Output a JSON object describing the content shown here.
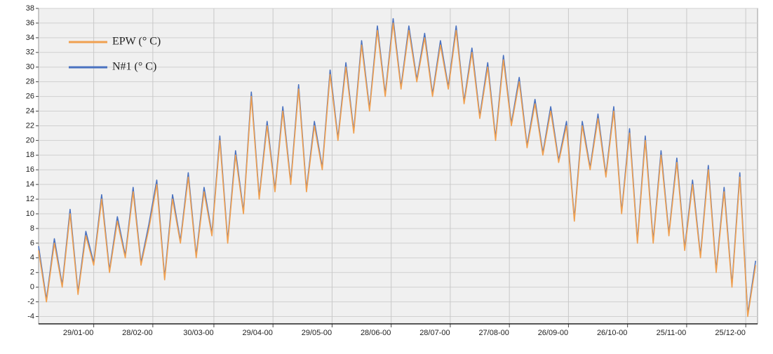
{
  "chart_data": {
    "type": "line",
    "x": [
      "01/01-00",
      "05/01-00",
      "09/01-00",
      "13/01-00",
      "17/01-00",
      "21/01-00",
      "25/01-00",
      "29/01-00",
      "02/02-00",
      "06/02-00",
      "10/02-00",
      "14/02-00",
      "18/02-00",
      "22/02-00",
      "26/02-00",
      "01/03-00",
      "05/03-00",
      "09/03-00",
      "13/03-00",
      "17/03-00",
      "21/03-00",
      "25/03-00",
      "29/03-00",
      "02/04-00",
      "06/04-00",
      "10/04-00",
      "14/04-00",
      "18/04-00",
      "22/04-00",
      "26/04-00",
      "30/04-00",
      "04/05-00",
      "08/05-00",
      "12/05-00",
      "16/05-00",
      "20/05-00",
      "24/05-00",
      "28/05-00",
      "01/06-00",
      "05/06-00",
      "09/06-00",
      "13/06-00",
      "17/06-00",
      "21/06-00",
      "25/06-00",
      "29/06-00",
      "03/07-00",
      "07/07-00",
      "11/07-00",
      "15/07-00",
      "19/07-00",
      "23/07-00",
      "27/07-00",
      "31/07-00",
      "04/08-00",
      "08/08-00",
      "12/08-00",
      "16/08-00",
      "20/08-00",
      "24/08-00",
      "28/08-00",
      "01/09-00",
      "05/09-00",
      "09/09-00",
      "13/09-00",
      "17/09-00",
      "21/09-00",
      "25/09-00",
      "29/09-00",
      "03/10-00",
      "07/10-00",
      "11/10-00",
      "15/10-00",
      "19/10-00",
      "23/10-00",
      "27/10-00",
      "31/10-00",
      "04/11-00",
      "08/11-00",
      "12/11-00",
      "16/11-00",
      "20/11-00",
      "24/11-00",
      "28/11-00",
      "02/12-00",
      "06/12-00",
      "10/12-00",
      "14/12-00",
      "18/12-00",
      "22/12-00",
      "26/12-00",
      "30/12-00"
    ],
    "series": [
      {
        "name": "N#1 (° C)",
        "color": "#4a72c0",
        "values": [
          5.6,
          -1.7,
          6.6,
          0.3,
          10.6,
          -0.7,
          7.6,
          3.3,
          12.6,
          2.3,
          9.6,
          4.3,
          13.6,
          3.3,
          8.6,
          14.6,
          1.3,
          12.6,
          6.3,
          15.6,
          4.3,
          13.6,
          7.3,
          20.6,
          6.3,
          18.6,
          10.3,
          26.6,
          12.3,
          22.6,
          13.3,
          24.6,
          14.3,
          27.6,
          13.3,
          22.6,
          16.3,
          29.6,
          20.3,
          30.6,
          21.3,
          33.6,
          24.3,
          35.6,
          26.3,
          36.6,
          27.3,
          35.6,
          28.3,
          34.6,
          26.3,
          33.6,
          27.3,
          35.6,
          25.3,
          32.6,
          23.3,
          30.6,
          20.3,
          31.6,
          22.3,
          28.6,
          19.3,
          25.6,
          18.3,
          24.6,
          17.3,
          22.6,
          9.3,
          22.6,
          16.3,
          23.6,
          15.3,
          24.6,
          10.3,
          21.6,
          6.3,
          20.6,
          6.3,
          18.6,
          7.3,
          17.6,
          5.3,
          14.6,
          4.3,
          16.6,
          2.3,
          13.6,
          0.3,
          15.6,
          -3.7,
          3.6
        ]
      },
      {
        "name": "EPW (° C)",
        "color": "#f0a050",
        "values": [
          5,
          -2,
          6,
          0,
          10,
          -1,
          7,
          3,
          12,
          2,
          9,
          4,
          13,
          3,
          8,
          14,
          1,
          12,
          6,
          15,
          4,
          13,
          7,
          20,
          6,
          18,
          10,
          26,
          12,
          22,
          13,
          24,
          14,
          27,
          13,
          22,
          16,
          29,
          20,
          30,
          21,
          33,
          24,
          35,
          26,
          36,
          27,
          35,
          28,
          34,
          26,
          33,
          27,
          35,
          25,
          32,
          23,
          30,
          20,
          31,
          22,
          28,
          19,
          25,
          18,
          24,
          17,
          22,
          9,
          22,
          16,
          23,
          15,
          24,
          10,
          21,
          6,
          20,
          6,
          18,
          7,
          17,
          5,
          14,
          4,
          16,
          2,
          13,
          0,
          15,
          -4,
          3
        ]
      }
    ],
    "xlim": [
      "01/01-00",
      "31/12-00"
    ],
    "xticks": [
      "29/01-00",
      "28/02-00",
      "30/03-00",
      "29/04-00",
      "29/05-00",
      "28/06-00",
      "28/07-00",
      "27/08-00",
      "26/09-00",
      "26/10-00",
      "25/11-00",
      "25/12-00"
    ],
    "ylim": [
      -5,
      38
    ],
    "yticks": [
      -4,
      -2,
      0,
      2,
      4,
      6,
      8,
      10,
      12,
      14,
      16,
      18,
      20,
      22,
      24,
      26,
      28,
      30,
      32,
      34,
      36,
      38
    ],
    "grid": true,
    "legend": "top-left"
  }
}
